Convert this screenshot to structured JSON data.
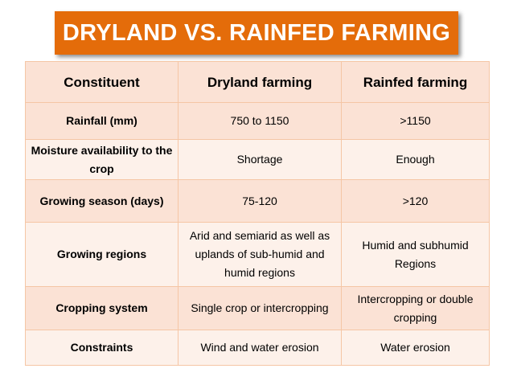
{
  "title": "DRYLAND VS. RAINFED FARMING",
  "table": {
    "headers": [
      "Constituent",
      "Dryland farming",
      "Rainfed farming"
    ],
    "rows": [
      [
        "Rainfall (mm)",
        "750 to 1150",
        ">1150"
      ],
      [
        "Moisture availability to the crop",
        "Shortage",
        "Enough"
      ],
      [
        "Growing season (days)",
        "75-120",
        ">120"
      ],
      [
        "Growing regions",
        "Arid and semiarid as well as uplands of sub-humid and humid regions",
        "Humid and subhumid Regions"
      ],
      [
        "Cropping system",
        "Single crop or intercropping",
        "Intercropping or double cropping"
      ],
      [
        "Constraints",
        "Wind and water erosion",
        "Water erosion"
      ]
    ]
  },
  "colors": {
    "title_bg": "#e46c0a",
    "header_bg": "#fbe2d5",
    "row_light": "#fdf1ea",
    "border": "#f5c6a5"
  }
}
